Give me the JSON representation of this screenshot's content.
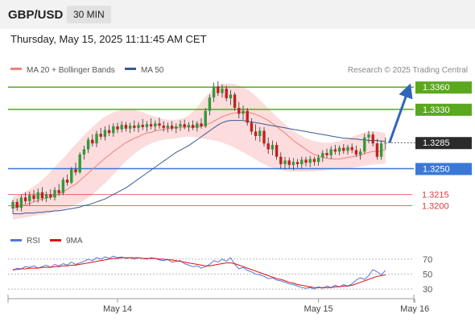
{
  "header": {
    "symbol": "GBP/USD",
    "timeframe": "30 MIN"
  },
  "timestamp": "Thursday, May 15, 2025 11:11:45 AM CET",
  "colors": {
    "green_level": "#5aa81e",
    "blue_level": "#3a78d8",
    "red_level": "#e03a3a",
    "bull_candle": "#2f9a3a",
    "bear_candle": "#c22020",
    "ma50": "#3a5a96",
    "ma20": "#f08080",
    "bollinger_band": "#fbd6d6",
    "arrow": "#2f66b8",
    "last_price_bg": "#2b2b2b",
    "rsi": "#5577dd",
    "rsi_ma": "#dd1111"
  },
  "chart_data": [
    {
      "type": "line",
      "name": "price",
      "legend": [
        {
          "label": "MA 20 + Bollinger Bands",
          "color": "#f08080"
        },
        {
          "label": "MA 50",
          "color": "#3a5a96"
        }
      ],
      "watermark": "Research © 2025 Trading Central",
      "price_range": [
        1.3182,
        1.3382
      ],
      "levels": [
        {
          "value": 1.336,
          "label": "1.3360",
          "kind": "resistance",
          "color": "#5aa81e"
        },
        {
          "value": 1.333,
          "label": "1.3330",
          "kind": "resistance",
          "color": "#5aa81e"
        },
        {
          "value": 1.325,
          "label": "1.3250",
          "kind": "pivot",
          "color": "#3a78d8"
        },
        {
          "value": 1.3215,
          "label": "1.3215",
          "kind": "support",
          "color": "#e03a3a"
        },
        {
          "value": 1.32,
          "label": "1.3200",
          "kind": "support",
          "color": "#e03a3a"
        }
      ],
      "last_price": {
        "value": 1.3285,
        "label": "1.3285"
      },
      "scenario_arrow": {
        "from": 1.3285,
        "to": 1.3356
      },
      "x_labels": [
        {
          "label": "May 14",
          "index": 25
        },
        {
          "label": "May 15",
          "index": 73
        },
        {
          "label": "May 16",
          "index": 96
        }
      ],
      "ohlc": [
        [
          1.3196,
          1.3208,
          1.3189,
          1.3205
        ],
        [
          1.3205,
          1.3209,
          1.3193,
          1.3197
        ],
        [
          1.3197,
          1.3215,
          1.3192,
          1.3211
        ],
        [
          1.3211,
          1.3218,
          1.3202,
          1.3206
        ],
        [
          1.3206,
          1.3219,
          1.32,
          1.3214
        ],
        [
          1.3214,
          1.3221,
          1.3205,
          1.3209
        ],
        [
          1.3209,
          1.3223,
          1.3204,
          1.3218
        ],
        [
          1.3218,
          1.3225,
          1.3206,
          1.321
        ],
        [
          1.321,
          1.3219,
          1.3205,
          1.3215
        ],
        [
          1.3215,
          1.3222,
          1.3208,
          1.3211
        ],
        [
          1.3211,
          1.3225,
          1.3207,
          1.3221
        ],
        [
          1.3221,
          1.3229,
          1.3213,
          1.3217
        ],
        [
          1.3217,
          1.3238,
          1.3214,
          1.3235
        ],
        [
          1.3235,
          1.3242,
          1.3227,
          1.3231
        ],
        [
          1.3231,
          1.3252,
          1.3229,
          1.3249
        ],
        [
          1.3249,
          1.3258,
          1.3241,
          1.3245
        ],
        [
          1.3245,
          1.3272,
          1.3243,
          1.3269
        ],
        [
          1.3269,
          1.3281,
          1.3262,
          1.3276
        ],
        [
          1.3276,
          1.3292,
          1.3271,
          1.3289
        ],
        [
          1.3289,
          1.3296,
          1.328,
          1.3284
        ],
        [
          1.3284,
          1.3301,
          1.3279,
          1.3297
        ],
        [
          1.3297,
          1.3305,
          1.3289,
          1.3293
        ],
        [
          1.3293,
          1.3307,
          1.3288,
          1.3302
        ],
        [
          1.3302,
          1.3309,
          1.3294,
          1.3298
        ],
        [
          1.3298,
          1.3311,
          1.3293,
          1.3307
        ],
        [
          1.3307,
          1.3312,
          1.3298,
          1.3303
        ],
        [
          1.3303,
          1.3314,
          1.3299,
          1.3309
        ],
        [
          1.3309,
          1.3313,
          1.33,
          1.3304
        ],
        [
          1.3304,
          1.3312,
          1.3298,
          1.3308
        ],
        [
          1.3308,
          1.3315,
          1.33,
          1.3305
        ],
        [
          1.3305,
          1.3313,
          1.3299,
          1.3309
        ],
        [
          1.3309,
          1.3317,
          1.3302,
          1.3306
        ],
        [
          1.3306,
          1.3314,
          1.33,
          1.331
        ],
        [
          1.331,
          1.3318,
          1.3303,
          1.3307
        ],
        [
          1.3307,
          1.3315,
          1.3301,
          1.3311
        ],
        [
          1.3311,
          1.3319,
          1.3304,
          1.3308
        ],
        [
          1.3308,
          1.3314,
          1.33,
          1.3305
        ],
        [
          1.3305,
          1.3312,
          1.3299,
          1.3308
        ],
        [
          1.3308,
          1.3314,
          1.3301,
          1.3304
        ],
        [
          1.3304,
          1.3311,
          1.3298,
          1.3307
        ],
        [
          1.3307,
          1.3315,
          1.3301,
          1.331
        ],
        [
          1.331,
          1.3316,
          1.3303,
          1.3306
        ],
        [
          1.3306,
          1.3313,
          1.33,
          1.3309
        ],
        [
          1.3309,
          1.3315,
          1.3302,
          1.3305
        ],
        [
          1.3305,
          1.3314,
          1.33,
          1.3311
        ],
        [
          1.3311,
          1.3318,
          1.3304,
          1.3307
        ],
        [
          1.3307,
          1.3332,
          1.3305,
          1.3328
        ],
        [
          1.3328,
          1.335,
          1.3322,
          1.3346
        ],
        [
          1.3346,
          1.3366,
          1.334,
          1.3361
        ],
        [
          1.3361,
          1.3368,
          1.3348,
          1.3352
        ],
        [
          1.3352,
          1.3364,
          1.3346,
          1.3358
        ],
        [
          1.3358,
          1.3362,
          1.3341,
          1.3345
        ],
        [
          1.3345,
          1.3356,
          1.3336,
          1.335
        ],
        [
          1.335,
          1.3353,
          1.3328,
          1.3332
        ],
        [
          1.3332,
          1.334,
          1.3318,
          1.3324
        ],
        [
          1.3324,
          1.3335,
          1.3316,
          1.3328
        ],
        [
          1.3328,
          1.3332,
          1.3308,
          1.3312
        ],
        [
          1.3312,
          1.3318,
          1.3296,
          1.33
        ],
        [
          1.33,
          1.331,
          1.3288,
          1.3294
        ],
        [
          1.3294,
          1.3306,
          1.3286,
          1.3301
        ],
        [
          1.3301,
          1.3306,
          1.328,
          1.3284
        ],
        [
          1.3284,
          1.3292,
          1.327,
          1.3276
        ],
        [
          1.3276,
          1.3288,
          1.3268,
          1.3282
        ],
        [
          1.3282,
          1.3286,
          1.3262,
          1.3266
        ],
        [
          1.3266,
          1.3272,
          1.325,
          1.3256
        ],
        [
          1.3256,
          1.3266,
          1.3249,
          1.3261
        ],
        [
          1.3261,
          1.3265,
          1.325,
          1.3255
        ],
        [
          1.3255,
          1.3264,
          1.3248,
          1.3259
        ],
        [
          1.3259,
          1.3263,
          1.3251,
          1.3256
        ],
        [
          1.3256,
          1.3266,
          1.325,
          1.3262
        ],
        [
          1.3262,
          1.3266,
          1.3253,
          1.3258
        ],
        [
          1.3258,
          1.3267,
          1.3252,
          1.3263
        ],
        [
          1.3263,
          1.3266,
          1.3254,
          1.3259
        ],
        [
          1.3259,
          1.3269,
          1.3254,
          1.3265
        ],
        [
          1.3265,
          1.3275,
          1.3259,
          1.3271
        ],
        [
          1.3271,
          1.3277,
          1.3264,
          1.3268
        ],
        [
          1.3268,
          1.328,
          1.3263,
          1.3276
        ],
        [
          1.3276,
          1.3282,
          1.3269,
          1.3273
        ],
        [
          1.3273,
          1.3281,
          1.3268,
          1.3278
        ],
        [
          1.3278,
          1.3283,
          1.327,
          1.3274
        ],
        [
          1.3274,
          1.3282,
          1.3269,
          1.3279
        ],
        [
          1.3279,
          1.3284,
          1.3271,
          1.3275
        ],
        [
          1.3275,
          1.3281,
          1.3266,
          1.3269
        ],
        [
          1.3269,
          1.3277,
          1.3262,
          1.3273
        ],
        [
          1.3273,
          1.3297,
          1.327,
          1.3292
        ],
        [
          1.3292,
          1.3301,
          1.3284,
          1.3296
        ],
        [
          1.3296,
          1.33,
          1.328,
          1.3284
        ],
        [
          1.3284,
          1.329,
          1.3262,
          1.3266
        ],
        [
          1.3266,
          1.3288,
          1.3262,
          1.3284
        ],
        [
          1.3284,
          1.3292,
          1.3276,
          1.3285
        ]
      ],
      "ma20": [
        1.3197,
        1.3198,
        1.32,
        1.3201,
        1.3203,
        1.3205,
        1.3207,
        1.3209,
        1.321,
        1.3212,
        1.3214,
        1.3216,
        1.3219,
        1.3222,
        1.3226,
        1.3229,
        1.3234,
        1.3239,
        1.3244,
        1.3249,
        1.3254,
        1.3259,
        1.3264,
        1.3268,
        1.3273,
        1.3277,
        1.3281,
        1.3285,
        1.3288,
        1.3291,
        1.3293,
        1.3296,
        1.3298,
        1.3299,
        1.3301,
        1.3302,
        1.3303,
        1.3304,
        1.3305,
        1.3305,
        1.3306,
        1.3306,
        1.3306,
        1.3306,
        1.3307,
        1.3307,
        1.3309,
        1.3311,
        1.3314,
        1.3317,
        1.332,
        1.3322,
        1.3324,
        1.3325,
        1.3326,
        1.3326,
        1.3326,
        1.3325,
        1.3323,
        1.3321,
        1.3318,
        1.3315,
        1.3311,
        1.3307,
        1.3302,
        1.3298,
        1.3293,
        1.3288,
        1.3284,
        1.328,
        1.3276,
        1.3272,
        1.3269,
        1.3267,
        1.3265,
        1.3264,
        1.3263,
        1.3263,
        1.3263,
        1.3264,
        1.3265,
        1.3266,
        1.3267,
        1.3268,
        1.327,
        1.3272,
        1.3273,
        1.3273,
        1.3274,
        1.3275
      ],
      "bb_upper": [
        1.3212,
        1.3214,
        1.3216,
        1.3219,
        1.3222,
        1.3226,
        1.323,
        1.3235,
        1.324,
        1.3246,
        1.3252,
        1.3258,
        1.3264,
        1.327,
        1.3277,
        1.3283,
        1.3289,
        1.3295,
        1.3301,
        1.3306,
        1.3311,
        1.3316,
        1.332,
        1.3323,
        1.3326,
        1.3328,
        1.3329,
        1.333,
        1.333,
        1.3329,
        1.3328,
        1.3326,
        1.3324,
        1.3322,
        1.332,
        1.3318,
        1.3317,
        1.3316,
        1.3316,
        1.3316,
        1.3317,
        1.3319,
        1.3322,
        1.3327,
        1.3333,
        1.334,
        1.3347,
        1.3353,
        1.3358,
        1.3362,
        1.3364,
        1.3365,
        1.3365,
        1.3364,
        1.3362,
        1.336,
        1.3357,
        1.3353,
        1.3348,
        1.3343,
        1.3337,
        1.3331,
        1.3326,
        1.332,
        1.3315,
        1.331,
        1.3305,
        1.3301,
        1.3297,
        1.3294,
        1.3291,
        1.3289,
        1.3287,
        1.3286,
        1.3285,
        1.3285,
        1.3285,
        1.3286,
        1.3287,
        1.3289,
        1.3291,
        1.3293,
        1.3295,
        1.3297,
        1.3299,
        1.33,
        1.33,
        1.33,
        1.3299,
        1.3298
      ],
      "bb_lower": [
        1.3181,
        1.3182,
        1.3183,
        1.3184,
        1.3185,
        1.3186,
        1.3187,
        1.3188,
        1.3189,
        1.319,
        1.3192,
        1.3193,
        1.3195,
        1.3197,
        1.3199,
        1.3201,
        1.3204,
        1.3207,
        1.3211,
        1.3215,
        1.322,
        1.3225,
        1.323,
        1.3236,
        1.3242,
        1.3248,
        1.3254,
        1.326,
        1.3265,
        1.327,
        1.3274,
        1.3278,
        1.3281,
        1.3284,
        1.3286,
        1.3288,
        1.3289,
        1.329,
        1.329,
        1.3291,
        1.3292,
        1.3293,
        1.3293,
        1.3293,
        1.3292,
        1.3291,
        1.329,
        1.3289,
        1.3288,
        1.3287,
        1.3285,
        1.3283,
        1.3281,
        1.3278,
        1.3275,
        1.3272,
        1.3269,
        1.3266,
        1.3262,
        1.3259,
        1.3256,
        1.3253,
        1.3251,
        1.3249,
        1.3248,
        1.3247,
        1.3246,
        1.3246,
        1.3246,
        1.3246,
        1.3246,
        1.3246,
        1.3246,
        1.3247,
        1.3247,
        1.3248,
        1.3248,
        1.3249,
        1.3249,
        1.325,
        1.325,
        1.3251,
        1.3252,
        1.3253,
        1.3254,
        1.3255,
        1.3255,
        1.3256,
        1.3256,
        1.3257
      ],
      "ma50": [
        1.3189,
        1.3189,
        1.3189,
        1.319,
        1.319,
        1.319,
        1.3191,
        1.3191,
        1.3192,
        1.3192,
        1.3193,
        1.3193,
        1.3194,
        1.3195,
        1.3196,
        1.3197,
        1.3198,
        1.32,
        1.3201,
        1.3203,
        1.3205,
        1.3207,
        1.3209,
        1.3212,
        1.3215,
        1.3218,
        1.3221,
        1.3224,
        1.3228,
        1.3232,
        1.3236,
        1.324,
        1.3244,
        1.3248,
        1.3252,
        1.3256,
        1.326,
        1.3264,
        1.3268,
        1.3272,
        1.3275,
        1.3278,
        1.3281,
        1.3285,
        1.3289,
        1.3293,
        1.3297,
        1.3301,
        1.3305,
        1.3309,
        1.3312,
        1.3314,
        1.3315,
        1.3315,
        1.3315,
        1.3315,
        1.3314,
        1.3313,
        1.3312,
        1.3311,
        1.331,
        1.3309,
        1.3308,
        1.3307,
        1.3306,
        1.3305,
        1.3304,
        1.3303,
        1.3302,
        1.3301,
        1.33,
        1.3299,
        1.3298,
        1.3297,
        1.3296,
        1.3295,
        1.3294,
        1.3293,
        1.3292,
        1.3291,
        1.3291,
        1.329,
        1.329,
        1.3289,
        1.3289,
        1.3288,
        1.3288,
        1.3288,
        1.3287,
        1.3287
      ]
    },
    {
      "type": "line",
      "name": "rsi",
      "legend": [
        {
          "label": "RSI",
          "color": "#5577dd"
        },
        {
          "label": "9MA",
          "color": "#dd1111"
        }
      ],
      "y_range": [
        15,
        85
      ],
      "y_ticks": [
        70,
        50,
        30
      ],
      "rsi": [
        55,
        58,
        57,
        60,
        59,
        61,
        58,
        60,
        62,
        59,
        63,
        61,
        64,
        62,
        66,
        63,
        65,
        67,
        70,
        68,
        72,
        70,
        73,
        71,
        74,
        72,
        73,
        71,
        72,
        70,
        72,
        71,
        70,
        72,
        71,
        69,
        68,
        70,
        66,
        67,
        68,
        64,
        62,
        60,
        61,
        58,
        60,
        63,
        68,
        66,
        70,
        67,
        72,
        63,
        57,
        59,
        55,
        53,
        50,
        49,
        47,
        44,
        45,
        42,
        41,
        39,
        37,
        36,
        34,
        32,
        31,
        32,
        30,
        33,
        31,
        34,
        32,
        35,
        33,
        36,
        34,
        37,
        42,
        45,
        43,
        48,
        56,
        53,
        49,
        55
      ],
      "rsi_ma": [
        56,
        56,
        57,
        57,
        58,
        58,
        58,
        59,
        59,
        59,
        60,
        60,
        61,
        61,
        62,
        62,
        63,
        64,
        65,
        66,
        67,
        68,
        69,
        70,
        71,
        71,
        72,
        72,
        72,
        72,
        72,
        71,
        71,
        71,
        71,
        70,
        70,
        69,
        69,
        68,
        67,
        66,
        65,
        64,
        63,
        62,
        61,
        61,
        62,
        63,
        64,
        65,
        65,
        64,
        62,
        60,
        58,
        56,
        54,
        52,
        50,
        48,
        46,
        44,
        43,
        41,
        39,
        38,
        36,
        35,
        34,
        33,
        32,
        32,
        32,
        32,
        32,
        33,
        33,
        34,
        34,
        35,
        37,
        39,
        41,
        43,
        45,
        47,
        48,
        49
      ]
    }
  ]
}
